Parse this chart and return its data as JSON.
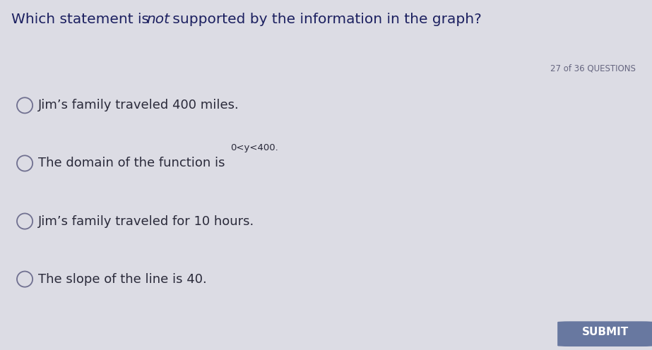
{
  "question_counter": "27 of 36 QUESTIONS",
  "options": [
    "Jim’s family traveled 400 miles.",
    "The domain of the function is ",
    "Jim’s family traveled for 10 hours.",
    "The slope of the line is 40."
  ],
  "option2_sup": "0<y<400.",
  "submit_label": "SUBMIT",
  "header_bg": "#aab4cc",
  "body_bg": "#dcdce4",
  "footer_bg": "#aab8cc",
  "submit_bg": "#6878a0",
  "title_color": "#1c2060",
  "option_color": "#2a2a3a",
  "counter_color": "#666680",
  "submit_color": "#ffffff",
  "circle_edge_color": "#707090",
  "title_fontsize": 14.5,
  "option_fontsize": 13.0,
  "counter_fontsize": 8.5,
  "submit_fontsize": 11
}
